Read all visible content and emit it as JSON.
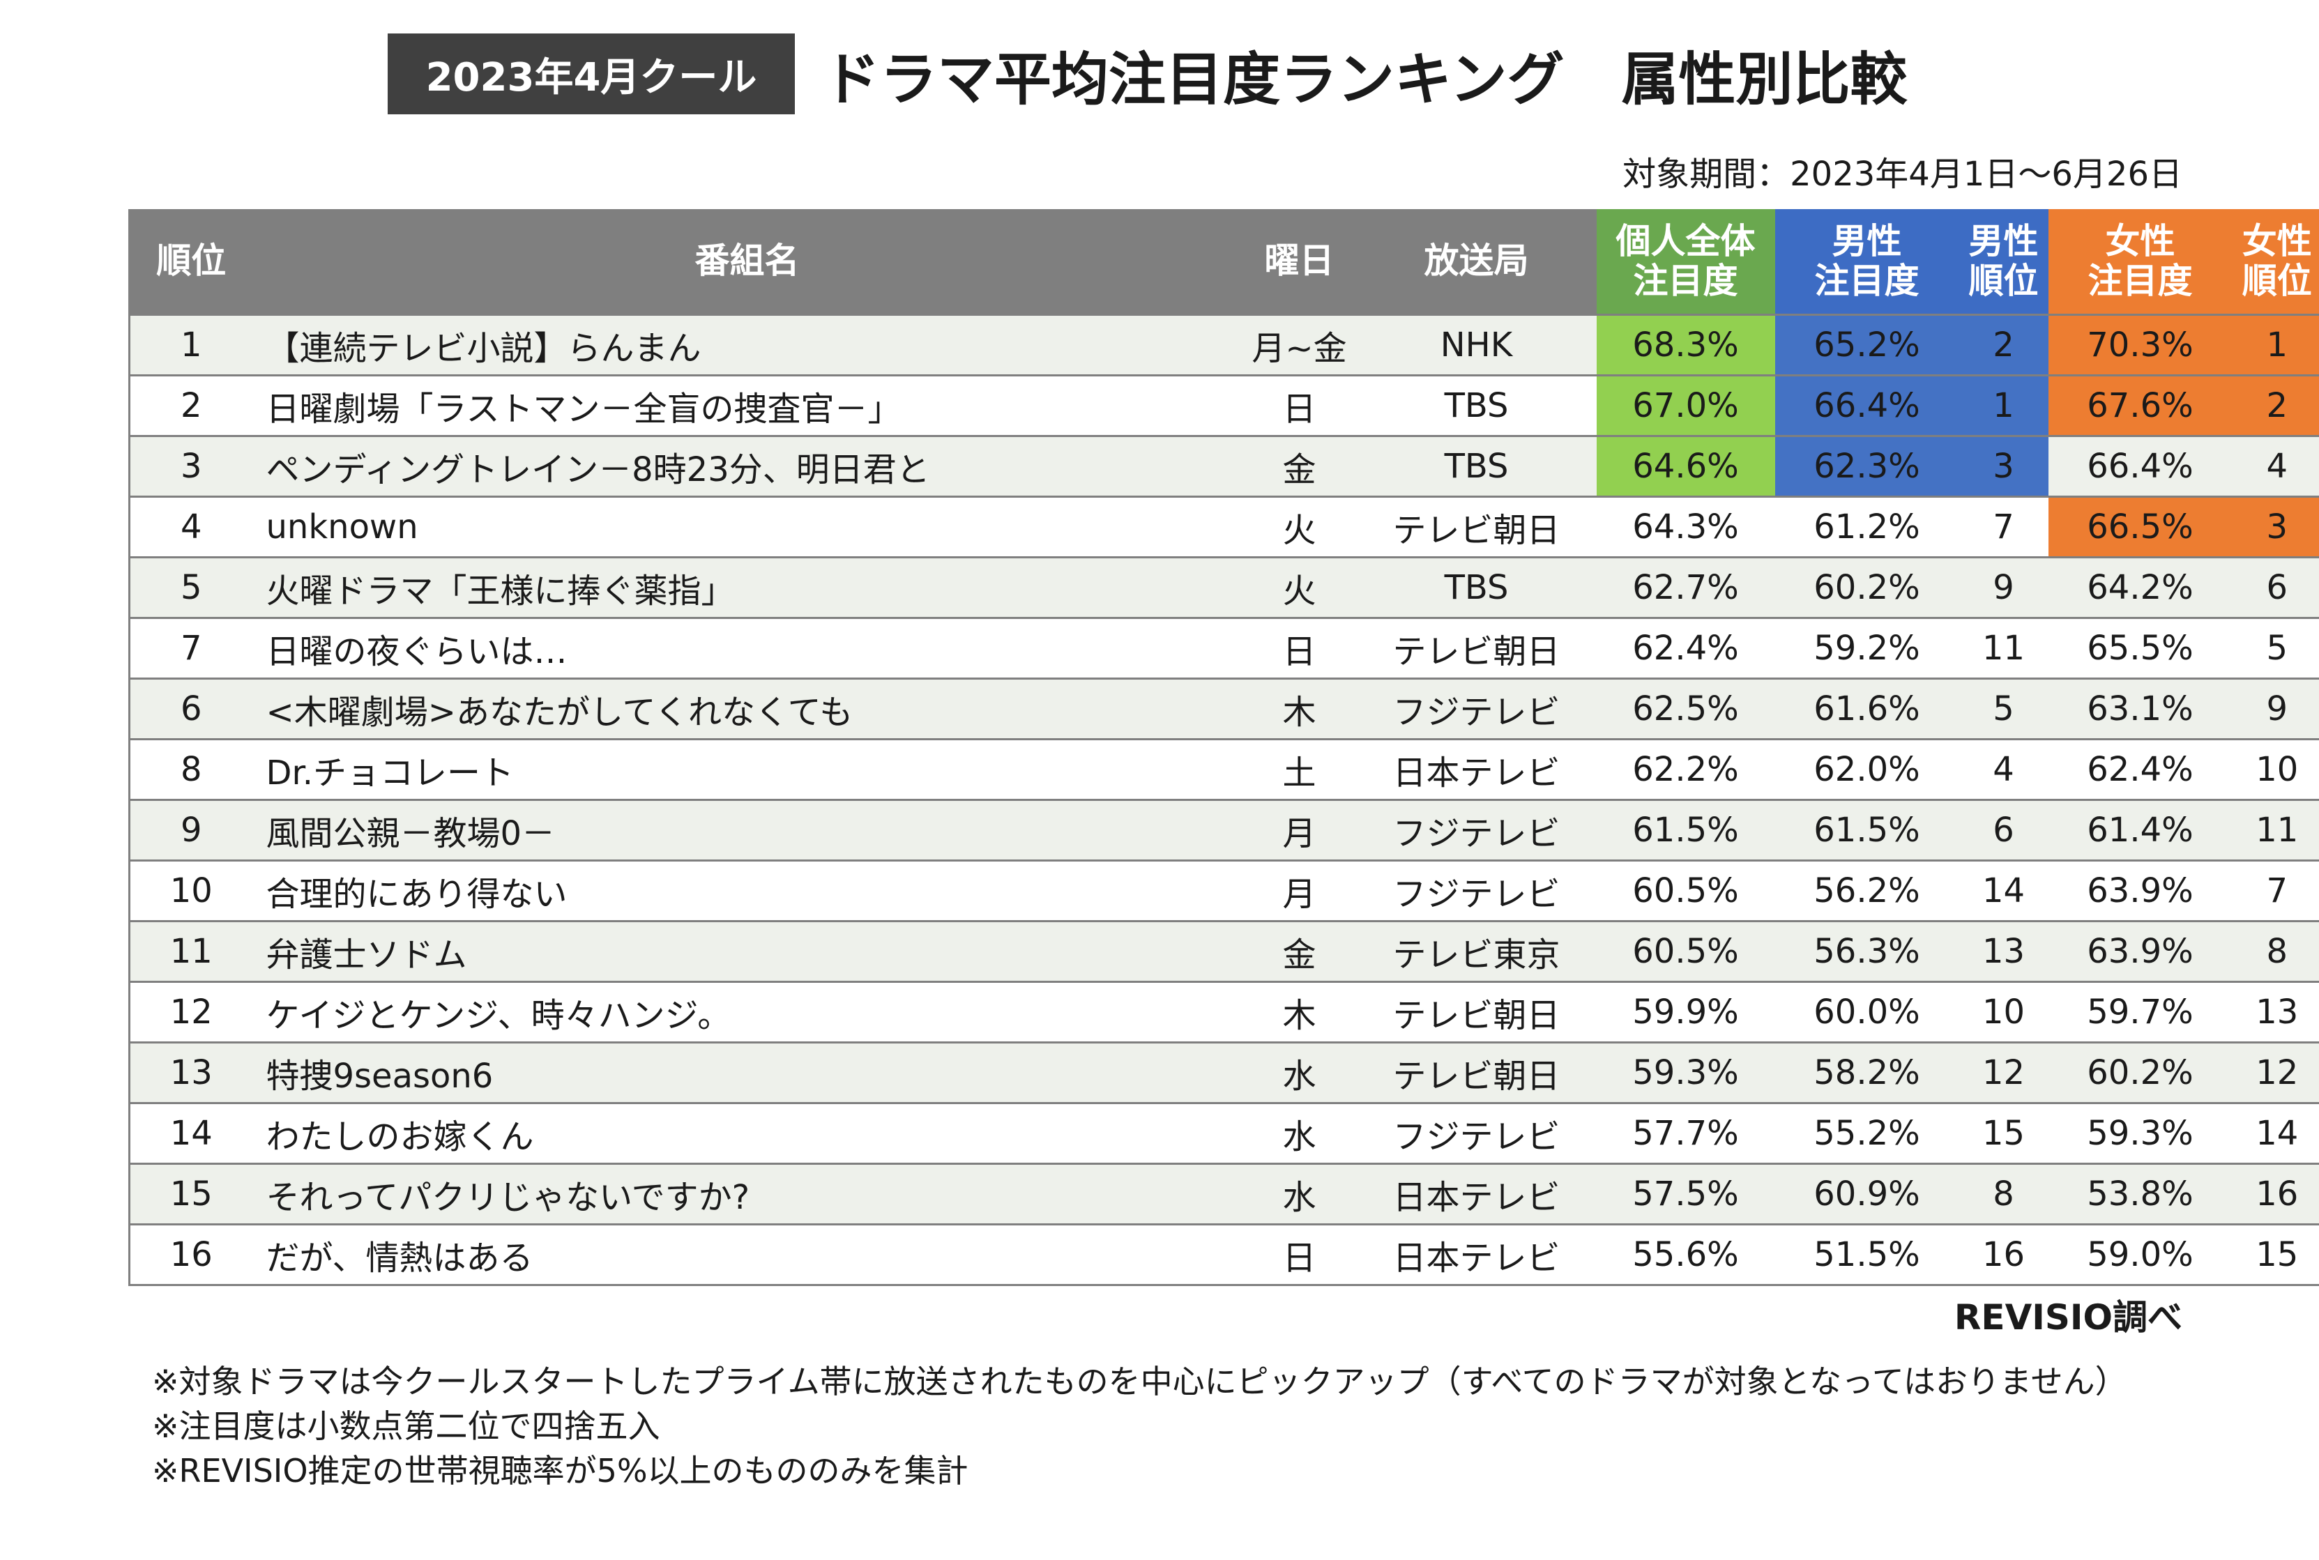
{
  "title_badge": "2023年4月クール",
  "title": "ドラマ平均注目度ランキング　属性別比較",
  "period": "対象期間：2023年4月1日～6月26日",
  "headers": {
    "rank": "順位",
    "program": "番組名",
    "day": "曜日",
    "station": "放送局",
    "overall": "個人全体\n注目度",
    "male": "男性\n注目度",
    "male_rank": "男性\n順位",
    "female": "女性\n注目度",
    "female_rank": "女性\n順位"
  },
  "colors": {
    "header_gray": "#7f7f7f",
    "header_green": "#6aa84f",
    "header_blue": "#3d6cc4",
    "header_orange": "#ed7d31",
    "highlight_green": "#92d050",
    "highlight_blue": "#4472c4",
    "highlight_orange": "#ed7d31",
    "row_alt": "#eef1eb"
  },
  "rows": [
    {
      "rank": "1",
      "program": "【連続テレビ小説】らんまん",
      "day": "月~金",
      "station": "NHK",
      "overall": "68.3%",
      "male": "65.2%",
      "male_rank": "2",
      "female": "70.3%",
      "female_rank": "1",
      "hl_overall": true,
      "hl_male": true,
      "hl_female": true
    },
    {
      "rank": "2",
      "program": "日曜劇場「ラストマン－全盲の捜査官－」",
      "day": "日",
      "station": "TBS",
      "overall": "67.0%",
      "male": "66.4%",
      "male_rank": "1",
      "female": "67.6%",
      "female_rank": "2",
      "hl_overall": true,
      "hl_male": true,
      "hl_female": true
    },
    {
      "rank": "3",
      "program": "ペンディングトレイン－8時23分、明日君と",
      "day": "金",
      "station": "TBS",
      "overall": "64.6%",
      "male": "62.3%",
      "male_rank": "3",
      "female": "66.4%",
      "female_rank": "4",
      "hl_overall": true,
      "hl_male": true,
      "hl_female": false
    },
    {
      "rank": "4",
      "program": "unknown",
      "day": "火",
      "station": "テレビ朝日",
      "overall": "64.3%",
      "male": "61.2%",
      "male_rank": "7",
      "female": "66.5%",
      "female_rank": "3",
      "hl_overall": false,
      "hl_male": false,
      "hl_female": true
    },
    {
      "rank": "5",
      "program": "火曜ドラマ「王様に捧ぐ薬指」",
      "day": "火",
      "station": "TBS",
      "overall": "62.7%",
      "male": "60.2%",
      "male_rank": "9",
      "female": "64.2%",
      "female_rank": "6",
      "hl_overall": false,
      "hl_male": false,
      "hl_female": false
    },
    {
      "rank": "7",
      "program": "日曜の夜ぐらいは…",
      "day": "日",
      "station": "テレビ朝日",
      "overall": "62.4%",
      "male": "59.2%",
      "male_rank": "11",
      "female": "65.5%",
      "female_rank": "5",
      "hl_overall": false,
      "hl_male": false,
      "hl_female": false
    },
    {
      "rank": "6",
      "program": "<木曜劇場>あなたがしてくれなくても",
      "day": "木",
      "station": "フジテレビ",
      "overall": "62.5%",
      "male": "61.6%",
      "male_rank": "5",
      "female": "63.1%",
      "female_rank": "9",
      "hl_overall": false,
      "hl_male": false,
      "hl_female": false
    },
    {
      "rank": "8",
      "program": "Dr.チョコレート",
      "day": "土",
      "station": "日本テレビ",
      "overall": "62.2%",
      "male": "62.0%",
      "male_rank": "4",
      "female": "62.4%",
      "female_rank": "10",
      "hl_overall": false,
      "hl_male": false,
      "hl_female": false
    },
    {
      "rank": "9",
      "program": "風間公親－教場0－",
      "day": "月",
      "station": "フジテレビ",
      "overall": "61.5%",
      "male": "61.5%",
      "male_rank": "6",
      "female": "61.4%",
      "female_rank": "11",
      "hl_overall": false,
      "hl_male": false,
      "hl_female": false
    },
    {
      "rank": "10",
      "program": "合理的にあり得ない",
      "day": "月",
      "station": "フジテレビ",
      "overall": "60.5%",
      "male": "56.2%",
      "male_rank": "14",
      "female": "63.9%",
      "female_rank": "7",
      "hl_overall": false,
      "hl_male": false,
      "hl_female": false
    },
    {
      "rank": "11",
      "program": "弁護士ソドム",
      "day": "金",
      "station": "テレビ東京",
      "overall": "60.5%",
      "male": "56.3%",
      "male_rank": "13",
      "female": "63.9%",
      "female_rank": "8",
      "hl_overall": false,
      "hl_male": false,
      "hl_female": false
    },
    {
      "rank": "12",
      "program": "ケイジとケンジ、時々ハンジ。",
      "day": "木",
      "station": "テレビ朝日",
      "overall": "59.9%",
      "male": "60.0%",
      "male_rank": "10",
      "female": "59.7%",
      "female_rank": "13",
      "hl_overall": false,
      "hl_male": false,
      "hl_female": false
    },
    {
      "rank": "13",
      "program": "特捜9season6",
      "day": "水",
      "station": "テレビ朝日",
      "overall": "59.3%",
      "male": "58.2%",
      "male_rank": "12",
      "female": "60.2%",
      "female_rank": "12",
      "hl_overall": false,
      "hl_male": false,
      "hl_female": false
    },
    {
      "rank": "14",
      "program": "わたしのお嫁くん",
      "day": "水",
      "station": "フジテレビ",
      "overall": "57.7%",
      "male": "55.2%",
      "male_rank": "15",
      "female": "59.3%",
      "female_rank": "14",
      "hl_overall": false,
      "hl_male": false,
      "hl_female": false
    },
    {
      "rank": "15",
      "program": "それってパクリじゃないですか?",
      "day": "水",
      "station": "日本テレビ",
      "overall": "57.5%",
      "male": "60.9%",
      "male_rank": "8",
      "female": "53.8%",
      "female_rank": "16",
      "hl_overall": false,
      "hl_male": false,
      "hl_female": false
    },
    {
      "rank": "16",
      "program": "だが、情熱はある",
      "day": "日",
      "station": "日本テレビ",
      "overall": "55.6%",
      "male": "51.5%",
      "male_rank": "16",
      "female": "59.0%",
      "female_rank": "15",
      "hl_overall": false,
      "hl_male": false,
      "hl_female": false
    }
  ],
  "source": "REVISIO調べ",
  "notes": [
    "※対象ドラマは今クールスタートしたプライム帯に放送されたものを中心にピックアップ（すべてのドラマが対象となってはおりません）",
    "※注目度は小数点第二位で四捨五入",
    "※REVISIO推定の世帯視聴率が5%以上のもののみを集計"
  ]
}
